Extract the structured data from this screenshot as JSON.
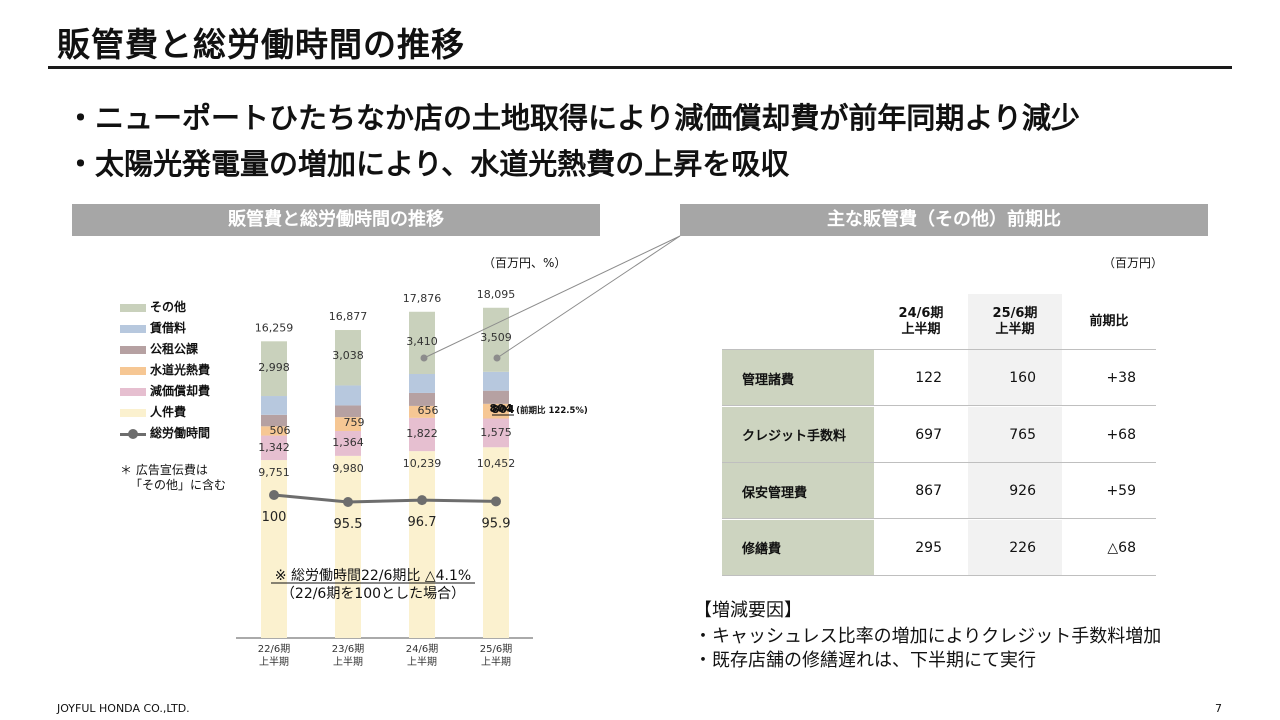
{
  "title": "販管費と総労働時間の推移",
  "bullets": [
    "・ニューポートひたちなか店の土地取得により減価償却費が前年同期より減少",
    "・太陽光発電量の増加により、水道光熱費の上昇を吸収"
  ],
  "left_panel": {
    "heading": "販管費と総労働時間の推移",
    "unit": "（百万円、%）",
    "note_line1": "＊ 広告宣伝費は",
    "note_line2": "「その他」に含む",
    "annotation_line1": "※ 総労働時間22/6期比 △4.1%",
    "annotation_line2": "（22/6期を100とした場合）",
    "water_yoy": "(前期比 122.5%)"
  },
  "chart_data": {
    "type": "bar",
    "stacked": true,
    "categories": [
      [
        "22/6期",
        "上半期"
      ],
      [
        "23/6期",
        "上半期"
      ],
      [
        "24/6期",
        "上半期"
      ],
      [
        "25/6期",
        "上半期"
      ]
    ],
    "totals": [
      16259,
      16877,
      17876,
      18095
    ],
    "total_labels": [
      "16,259",
      "16,877",
      "17,876",
      "18,095"
    ],
    "series": [
      {
        "name": "人件費",
        "values": [
          9751,
          9980,
          10239,
          10452
        ],
        "labels": [
          "9,751",
          "9,980",
          "10,239",
          "10,452"
        ],
        "color": "#fbf1cf"
      },
      {
        "name": "減価償却費",
        "values": [
          1342,
          1364,
          1822,
          1575
        ],
        "labels": [
          "1,342",
          "1,364",
          "1,822",
          "1,575"
        ],
        "color": "#e6bfd0"
      },
      {
        "name": "水道光熱費",
        "values": [
          506,
          759,
          656,
          804
        ],
        "labels": [
          "506",
          "759",
          "656",
          "804"
        ],
        "color": "#f6c794"
      },
      {
        "name": "公租公課",
        "values": [
          630,
          640,
          710,
          720
        ],
        "labels": [
          "",
          "",
          "",
          ""
        ],
        "color": "#b6a1a2"
      },
      {
        "name": "賃借料",
        "values": [
          1030,
          1095,
          1039,
          1035
        ],
        "labels": [
          "",
          "",
          "",
          ""
        ],
        "color": "#b7c8de"
      },
      {
        "name": "その他",
        "values": [
          2998,
          3038,
          3410,
          3509
        ],
        "labels": [
          "2,998",
          "3,038",
          "3,410",
          "3,509"
        ],
        "color": "#c9d1bc"
      }
    ],
    "line": {
      "name": "総労働時間",
      "values": [
        100,
        95.5,
        96.7,
        95.9
      ],
      "labels": [
        "100",
        "95.5",
        "96.7",
        "95.9"
      ],
      "color": "#6d6d6d"
    },
    "legend_order": [
      "その他",
      "賃借料",
      "公租公課",
      "水道光熱費",
      "減価償却費",
      "人件費",
      "総労働時間"
    ]
  },
  "right_panel": {
    "heading": "主な販管費（その他）前期比",
    "unit": "（百万円）",
    "columns": [
      [
        "24/6期",
        "上半期"
      ],
      [
        "25/6期",
        "上半期"
      ],
      [
        "前期比"
      ]
    ],
    "rows": [
      {
        "label": "管理諸費",
        "v1": "122",
        "v2": "160",
        "diff": "+38"
      },
      {
        "label": "クレジット手数料",
        "v1": "697",
        "v2": "765",
        "diff": "+68"
      },
      {
        "label": "保安管理費",
        "v1": "867",
        "v2": "926",
        "diff": "+59"
      },
      {
        "label": "修繕費",
        "v1": "295",
        "v2": "226",
        "diff": "△68"
      }
    ],
    "factors_title": "【増減要因】",
    "factors": [
      "・キャッシュレス比率の増加によりクレジット手数料増加",
      "・既存店舗の修繕遅れは、下半期にて実行"
    ]
  },
  "footer": {
    "company": "JOYFUL HONDA CO.,LTD.",
    "page": "7"
  }
}
